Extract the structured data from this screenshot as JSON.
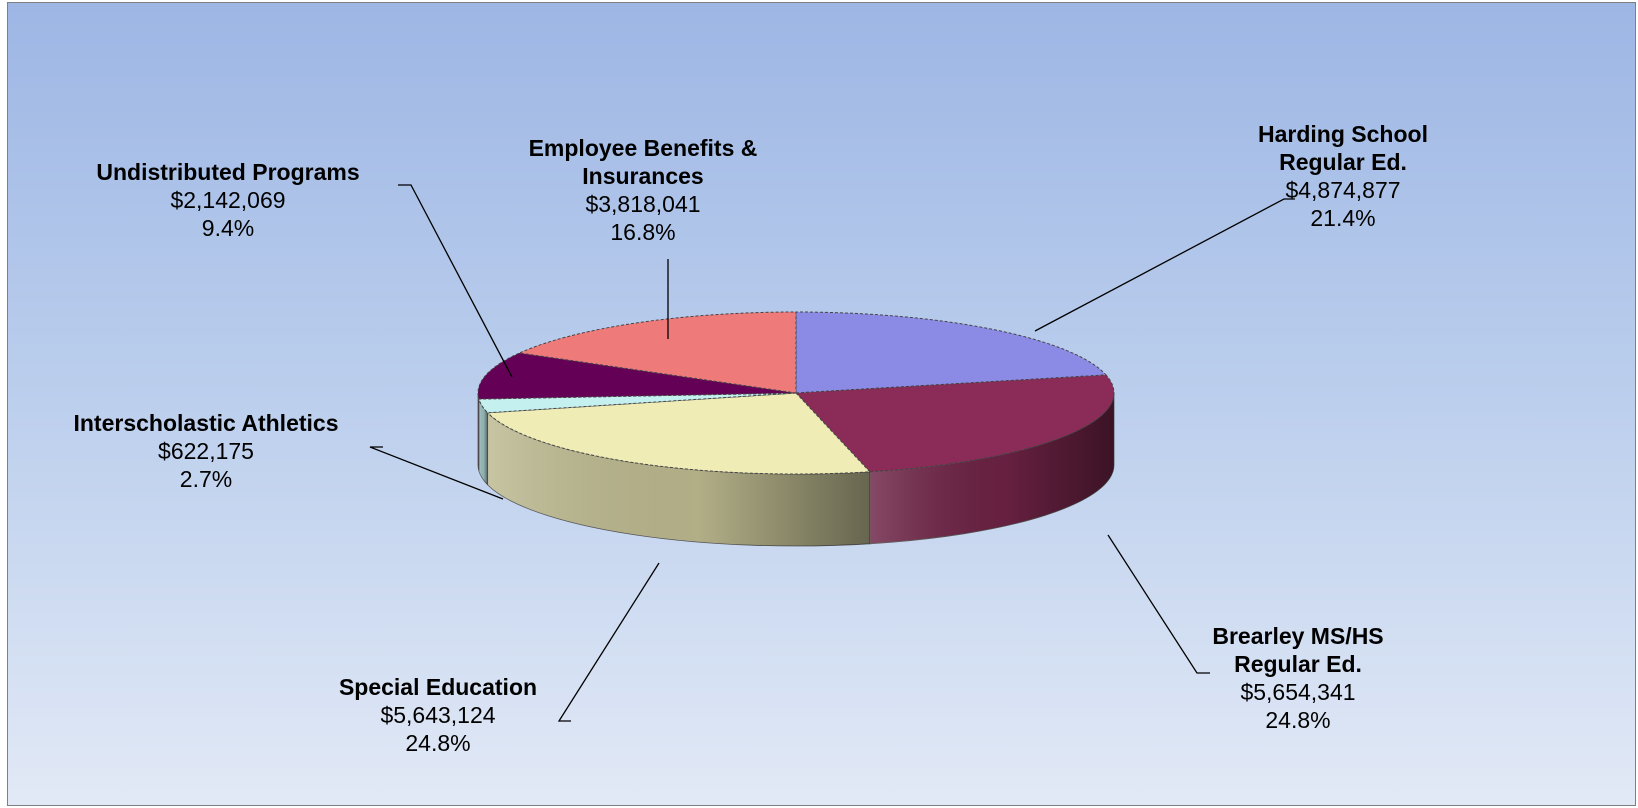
{
  "chart_data": {
    "type": "pie",
    "title": "",
    "three_d": true,
    "legend": "none",
    "slices": [
      {
        "label": [
          "Harding School",
          "Regular Ed."
        ],
        "value": 4874877,
        "value_text": "$4,874,877",
        "percent_text": "21.4%",
        "color": "#8b8be6"
      },
      {
        "label": [
          "Brearley MS/HS",
          "Regular Ed."
        ],
        "value": 5654341,
        "value_text": "$5,654,341",
        "percent_text": "24.8%",
        "color": "#8b2b57"
      },
      {
        "label": [
          "Special Education"
        ],
        "value": 5643124,
        "value_text": "$5,643,124",
        "percent_text": "24.8%",
        "color": "#f0ecb6"
      },
      {
        "label": [
          "Interscholastic Athletics"
        ],
        "value": 622175,
        "value_text": "$622,175",
        "percent_text": "2.7%",
        "color": "#c4f0f0"
      },
      {
        "label": [
          "Undistributed Programs"
        ],
        "value": 2142069,
        "value_text": "$2,142,069",
        "percent_text": "9.4%",
        "color": "#640055"
      },
      {
        "label": [
          "Employee Benefits &",
          "Insurances"
        ],
        "value": 3818041,
        "value_text": "$3,818,041",
        "percent_text": "16.8%",
        "color": "#ee7a7a"
      }
    ]
  }
}
